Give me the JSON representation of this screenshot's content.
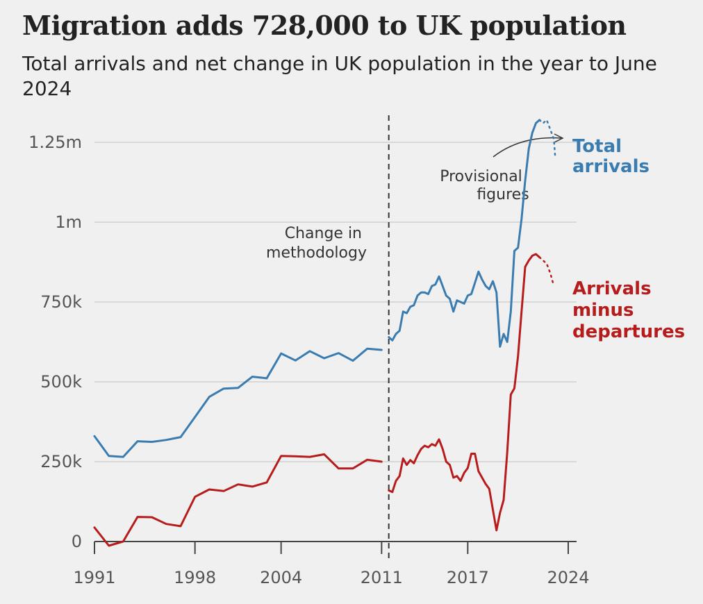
{
  "title": "Migration adds 728,000 to UK population",
  "subtitle": "Total arrivals and net change in UK population in the year to June 2024",
  "chart_data": {
    "type": "line",
    "title": "Migration adds 728,000 to UK population",
    "subtitle": "Total arrivals and net change in UK population in the year to June 2024",
    "xlabel": "",
    "ylabel": "",
    "xlim": [
      1991,
      2024
    ],
    "ylim": [
      -20000,
      1330000
    ],
    "x_ticks": [
      1991,
      1998,
      2004,
      2011,
      2017,
      2024
    ],
    "x_tick_labels": [
      "1991",
      "1998",
      "2004",
      "2011",
      "2017",
      "2024"
    ],
    "y_ticks": [
      0,
      250000,
      500000,
      750000,
      1000000,
      1250000
    ],
    "y_tick_labels": [
      "0",
      "250k",
      "500k",
      "750k",
      "1m",
      "1.25m"
    ],
    "grid": "horizontal",
    "methodology_change_year": 2011.5,
    "annotations": {
      "methodology": [
        "Change in",
        "methodology"
      ],
      "provisional": [
        "Provisional",
        "figures"
      ]
    },
    "series": [
      {
        "name": "Total arrivals",
        "label_lines": [
          "Total",
          "arrivals"
        ],
        "color": "#3a7cb0",
        "segments": [
          [
            [
              1991,
              330000
            ],
            [
              1992,
              268000
            ],
            [
              1993,
              265000
            ],
            [
              1994,
              314000
            ],
            [
              1995,
              312000
            ],
            [
              1996,
              318000
            ],
            [
              1997,
              327000
            ],
            [
              1998,
              390000
            ],
            [
              1999,
              453000
            ],
            [
              2000,
              479000
            ],
            [
              2001,
              481000
            ],
            [
              2002,
              516000
            ],
            [
              2003,
              511000
            ],
            [
              2004,
              589000
            ],
            [
              2005,
              567000
            ],
            [
              2006,
              596000
            ],
            [
              2007,
              574000
            ],
            [
              2008,
              590000
            ],
            [
              2009,
              566000
            ],
            [
              2010,
              604000
            ],
            [
              2011,
              600000
            ]
          ],
          [
            [
              2011.5,
              640000
            ],
            [
              2011.75,
              630000
            ],
            [
              2012,
              650000
            ],
            [
              2012.25,
              660000
            ],
            [
              2012.5,
              720000
            ],
            [
              2012.75,
              715000
            ],
            [
              2013,
              735000
            ],
            [
              2013.25,
              740000
            ],
            [
              2013.5,
              770000
            ],
            [
              2013.75,
              780000
            ],
            [
              2014,
              780000
            ],
            [
              2014.25,
              775000
            ],
            [
              2014.5,
              800000
            ],
            [
              2014.75,
              805000
            ],
            [
              2015,
              830000
            ],
            [
              2015.25,
              800000
            ],
            [
              2015.5,
              770000
            ],
            [
              2015.75,
              760000
            ],
            [
              2016,
              720000
            ],
            [
              2016.25,
              755000
            ],
            [
              2016.5,
              750000
            ],
            [
              2016.75,
              745000
            ],
            [
              2017,
              770000
            ],
            [
              2017.25,
              775000
            ],
            [
              2017.5,
              810000
            ],
            [
              2017.75,
              845000
            ],
            [
              2018,
              820000
            ],
            [
              2018.25,
              800000
            ],
            [
              2018.5,
              790000
            ],
            [
              2018.75,
              815000
            ],
            [
              2019,
              780000
            ],
            [
              2019.25,
              610000
            ],
            [
              2019.5,
              650000
            ],
            [
              2019.75,
              625000
            ],
            [
              2020,
              720000
            ],
            [
              2020.25,
              910000
            ],
            [
              2020.5,
              920000
            ],
            [
              2020.75,
              1010000
            ],
            [
              2021,
              1130000
            ],
            [
              2021.25,
              1230000
            ],
            [
              2021.5,
              1280000
            ],
            [
              2021.75,
              1310000
            ],
            [
              2022,
              1320000
            ]
          ],
          [
            [
              2022,
              1320000
            ],
            [
              2022.25,
              1310000
            ],
            [
              2022.5,
              1320000
            ],
            [
              2022.75,
              1290000
            ],
            [
              2023,
              1260000
            ],
            [
              2023.1,
              1200000
            ]
          ]
        ],
        "segment_styles": [
          "solid",
          "solid",
          "dotted"
        ]
      },
      {
        "name": "Arrivals minus departures",
        "label_lines": [
          "Arrivals",
          "minus",
          "departures"
        ],
        "color": "#b71c1c",
        "segments": [
          [
            [
              1991,
              44000
            ],
            [
              1992,
              -13000
            ],
            [
              1993,
              0
            ],
            [
              1994,
              77000
            ],
            [
              1995,
              76000
            ],
            [
              1996,
              55000
            ],
            [
              1997,
              48000
            ],
            [
              1998,
              140000
            ],
            [
              1999,
              163000
            ],
            [
              2000,
              158000
            ],
            [
              2001,
              179000
            ],
            [
              2002,
              172000
            ],
            [
              2003,
              185000
            ],
            [
              2004,
              268000
            ],
            [
              2005,
              267000
            ],
            [
              2006,
              265000
            ],
            [
              2007,
              273000
            ],
            [
              2008,
              229000
            ],
            [
              2009,
              229000
            ],
            [
              2010,
              256000
            ],
            [
              2011,
              250000
            ]
          ],
          [
            [
              2011.5,
              160000
            ],
            [
              2011.75,
              155000
            ],
            [
              2012,
              190000
            ],
            [
              2012.25,
              205000
            ],
            [
              2012.5,
              260000
            ],
            [
              2012.75,
              240000
            ],
            [
              2013,
              255000
            ],
            [
              2013.25,
              245000
            ],
            [
              2013.5,
              270000
            ],
            [
              2013.75,
              290000
            ],
            [
              2014,
              300000
            ],
            [
              2014.25,
              295000
            ],
            [
              2014.5,
              305000
            ],
            [
              2014.75,
              300000
            ],
            [
              2015,
              320000
            ],
            [
              2015.25,
              290000
            ],
            [
              2015.5,
              250000
            ],
            [
              2015.75,
              240000
            ],
            [
              2016,
              200000
            ],
            [
              2016.25,
              205000
            ],
            [
              2016.5,
              190000
            ],
            [
              2016.75,
              215000
            ],
            [
              2017,
              230000
            ],
            [
              2017.25,
              275000
            ],
            [
              2017.5,
              275000
            ],
            [
              2017.75,
              220000
            ],
            [
              2018,
              200000
            ],
            [
              2018.25,
              180000
            ],
            [
              2018.5,
              165000
            ],
            [
              2018.75,
              100000
            ],
            [
              2019,
              35000
            ],
            [
              2019.25,
              90000
            ],
            [
              2019.5,
              130000
            ],
            [
              2019.75,
              280000
            ],
            [
              2020,
              460000
            ],
            [
              2020.25,
              480000
            ],
            [
              2020.5,
              580000
            ],
            [
              2020.75,
              720000
            ],
            [
              2021,
              860000
            ],
            [
              2021.25,
              880000
            ],
            [
              2021.5,
              895000
            ],
            [
              2021.75,
              900000
            ],
            [
              2022,
              890000
            ]
          ],
          [
            [
              2022,
              890000
            ],
            [
              2022.25,
              880000
            ],
            [
              2022.5,
              870000
            ],
            [
              2022.75,
              840000
            ],
            [
              2023,
              800000
            ]
          ]
        ],
        "segment_styles": [
          "solid",
          "solid",
          "dotted"
        ]
      }
    ]
  }
}
